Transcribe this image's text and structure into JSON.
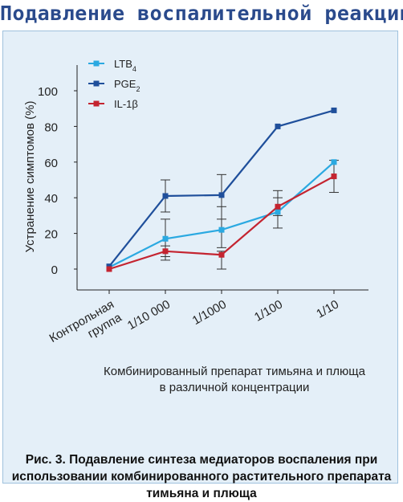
{
  "header": {
    "title": "Подавление воспалительной реакции"
  },
  "caption": "Рис. 3. Подавление синтеза медиаторов воспаления при использовании комбинированного растительного препарата тимьяна и плюща",
  "chart_data": {
    "type": "line",
    "categories": [
      [
        "Контрольная",
        "группа"
      ],
      [
        "1/10 000"
      ],
      [
        "1/1000"
      ],
      [
        "1/100"
      ],
      [
        "1/10"
      ]
    ],
    "xlabel": [
      "Комбинированный препарат тимьяна и плюща",
      "в различной концентрации"
    ],
    "ylabel": "Устранение симптомов (%)",
    "ylim": [
      0,
      100
    ],
    "yticks": [
      0,
      20,
      40,
      60,
      80,
      100
    ],
    "grid": false,
    "legend_position": "top-left",
    "series": [
      {
        "name": "LTB",
        "sub": "4",
        "color": "#2ba9e1",
        "values": [
          1,
          17,
          22,
          32,
          60
        ],
        "err_low": [
          null,
          5,
          12,
          23,
          null
        ],
        "err_high": [
          null,
          28,
          35,
          40,
          null
        ]
      },
      {
        "name": "PGE",
        "sub": "2",
        "color": "#1f4f9b",
        "values": [
          1.5,
          41,
          41.5,
          80,
          89
        ],
        "err_low": [
          null,
          32,
          28,
          null,
          null
        ],
        "err_high": [
          null,
          50,
          53,
          null,
          null
        ]
      },
      {
        "name": "IL-1β",
        "sub": "",
        "color": "#c42430",
        "values": [
          0,
          10,
          8,
          35,
          52
        ],
        "err_low": [
          null,
          7,
          0,
          30,
          43
        ],
        "err_high": [
          null,
          13,
          10,
          44,
          61
        ]
      }
    ]
  }
}
